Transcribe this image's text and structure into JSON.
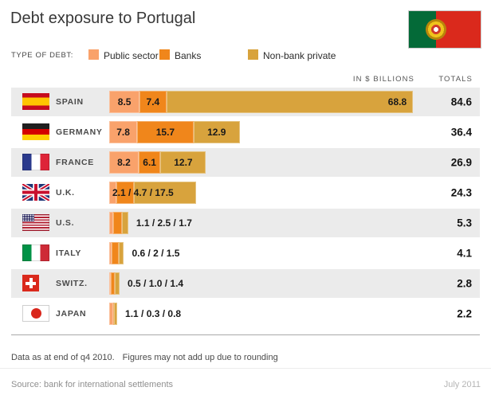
{
  "title": "Debt exposure to Portugal",
  "legend": {
    "label": "TYPE OF DEBT:",
    "items": [
      {
        "label": "Public sector",
        "color": "#F9A26B"
      },
      {
        "label": "Banks",
        "color": "#F0861B"
      },
      {
        "label": "Non-bank private",
        "color": "#D8A33D"
      }
    ]
  },
  "columns": {
    "in_billions": "IN $ BILLIONS",
    "totals": "TOTALS"
  },
  "chart_data": {
    "type": "bar",
    "orientation": "horizontal",
    "stacked": true,
    "title": "Debt exposure to Portugal",
    "unit": "$ billions",
    "categories": [
      "SPAIN",
      "GERMANY",
      "FRANCE",
      "U.K.",
      "U.S.",
      "ITALY",
      "SWITZ.",
      "JAPAN"
    ],
    "series": [
      {
        "name": "Public sector",
        "values": [
          8.5,
          7.8,
          8.2,
          2.1,
          1.1,
          0.6,
          0.5,
          1.1
        ]
      },
      {
        "name": "Banks",
        "values": [
          7.4,
          15.7,
          6.1,
          4.7,
          2.5,
          2.0,
          1.0,
          0.3
        ]
      },
      {
        "name": "Non-bank private",
        "values": [
          68.8,
          12.9,
          12.7,
          17.5,
          1.7,
          1.5,
          1.4,
          0.8
        ]
      }
    ],
    "totals": [
      84.6,
      36.4,
      26.9,
      24.3,
      5.3,
      4.1,
      2.8,
      2.2
    ],
    "legend_position": "top",
    "grid": false
  },
  "rows": [
    {
      "country": "SPAIN",
      "labels": [
        "8.5",
        "7.4",
        "68.8"
      ],
      "total": "84.6"
    },
    {
      "country": "GERMANY",
      "labels": [
        "7.8",
        "15.7",
        "12.9"
      ],
      "total": "36.4"
    },
    {
      "country": "FRANCE",
      "labels": [
        "8.2",
        "6.1",
        "12.7"
      ],
      "total": "26.9"
    },
    {
      "country": "U.K.",
      "combined": "2.1 / 4.7 / 17.5",
      "total": "24.3"
    },
    {
      "country": "U.S.",
      "combined": "1.1 / 2.5 / 1.7",
      "total": "5.3"
    },
    {
      "country": "ITALY",
      "combined": "0.6 / 2 / 1.5",
      "total": "4.1"
    },
    {
      "country": "SWITZ.",
      "combined": "0.5 / 1.0 / 1.4",
      "total": "2.8"
    },
    {
      "country": "JAPAN",
      "combined": "1.1 / 0.3 / 0.8",
      "total": "2.2"
    }
  ],
  "footer": {
    "note_1": "Data as at end of q4 2010.",
    "note_2": "Figures may not add up due to rounding",
    "source": "Source: bank for international settlements",
    "date": "July 2011"
  }
}
